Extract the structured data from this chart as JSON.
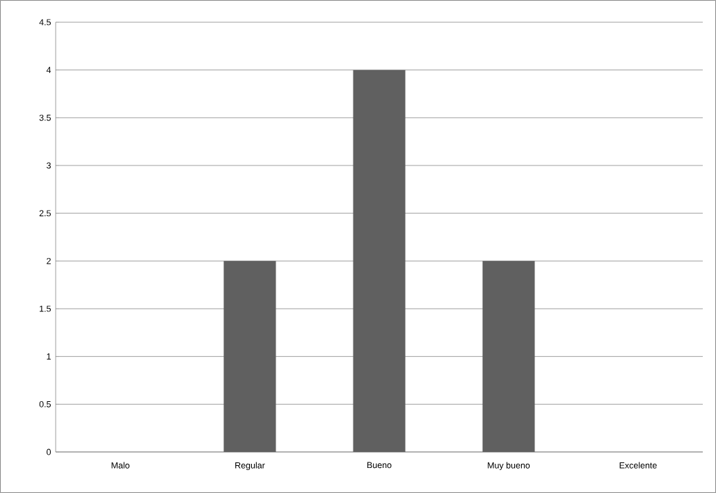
{
  "chart_data": {
    "type": "bar",
    "categories": [
      "Malo",
      "Regular",
      "Bueno",
      "Muy bueno",
      "Excelente"
    ],
    "values": [
      0,
      2,
      4,
      2,
      0
    ],
    "color": "#606060",
    "ylim": [
      0,
      4.5
    ],
    "yticks": [
      0,
      0.5,
      1,
      1.5,
      2,
      2.5,
      3,
      3.5,
      4,
      4.5
    ],
    "grid": "y"
  }
}
